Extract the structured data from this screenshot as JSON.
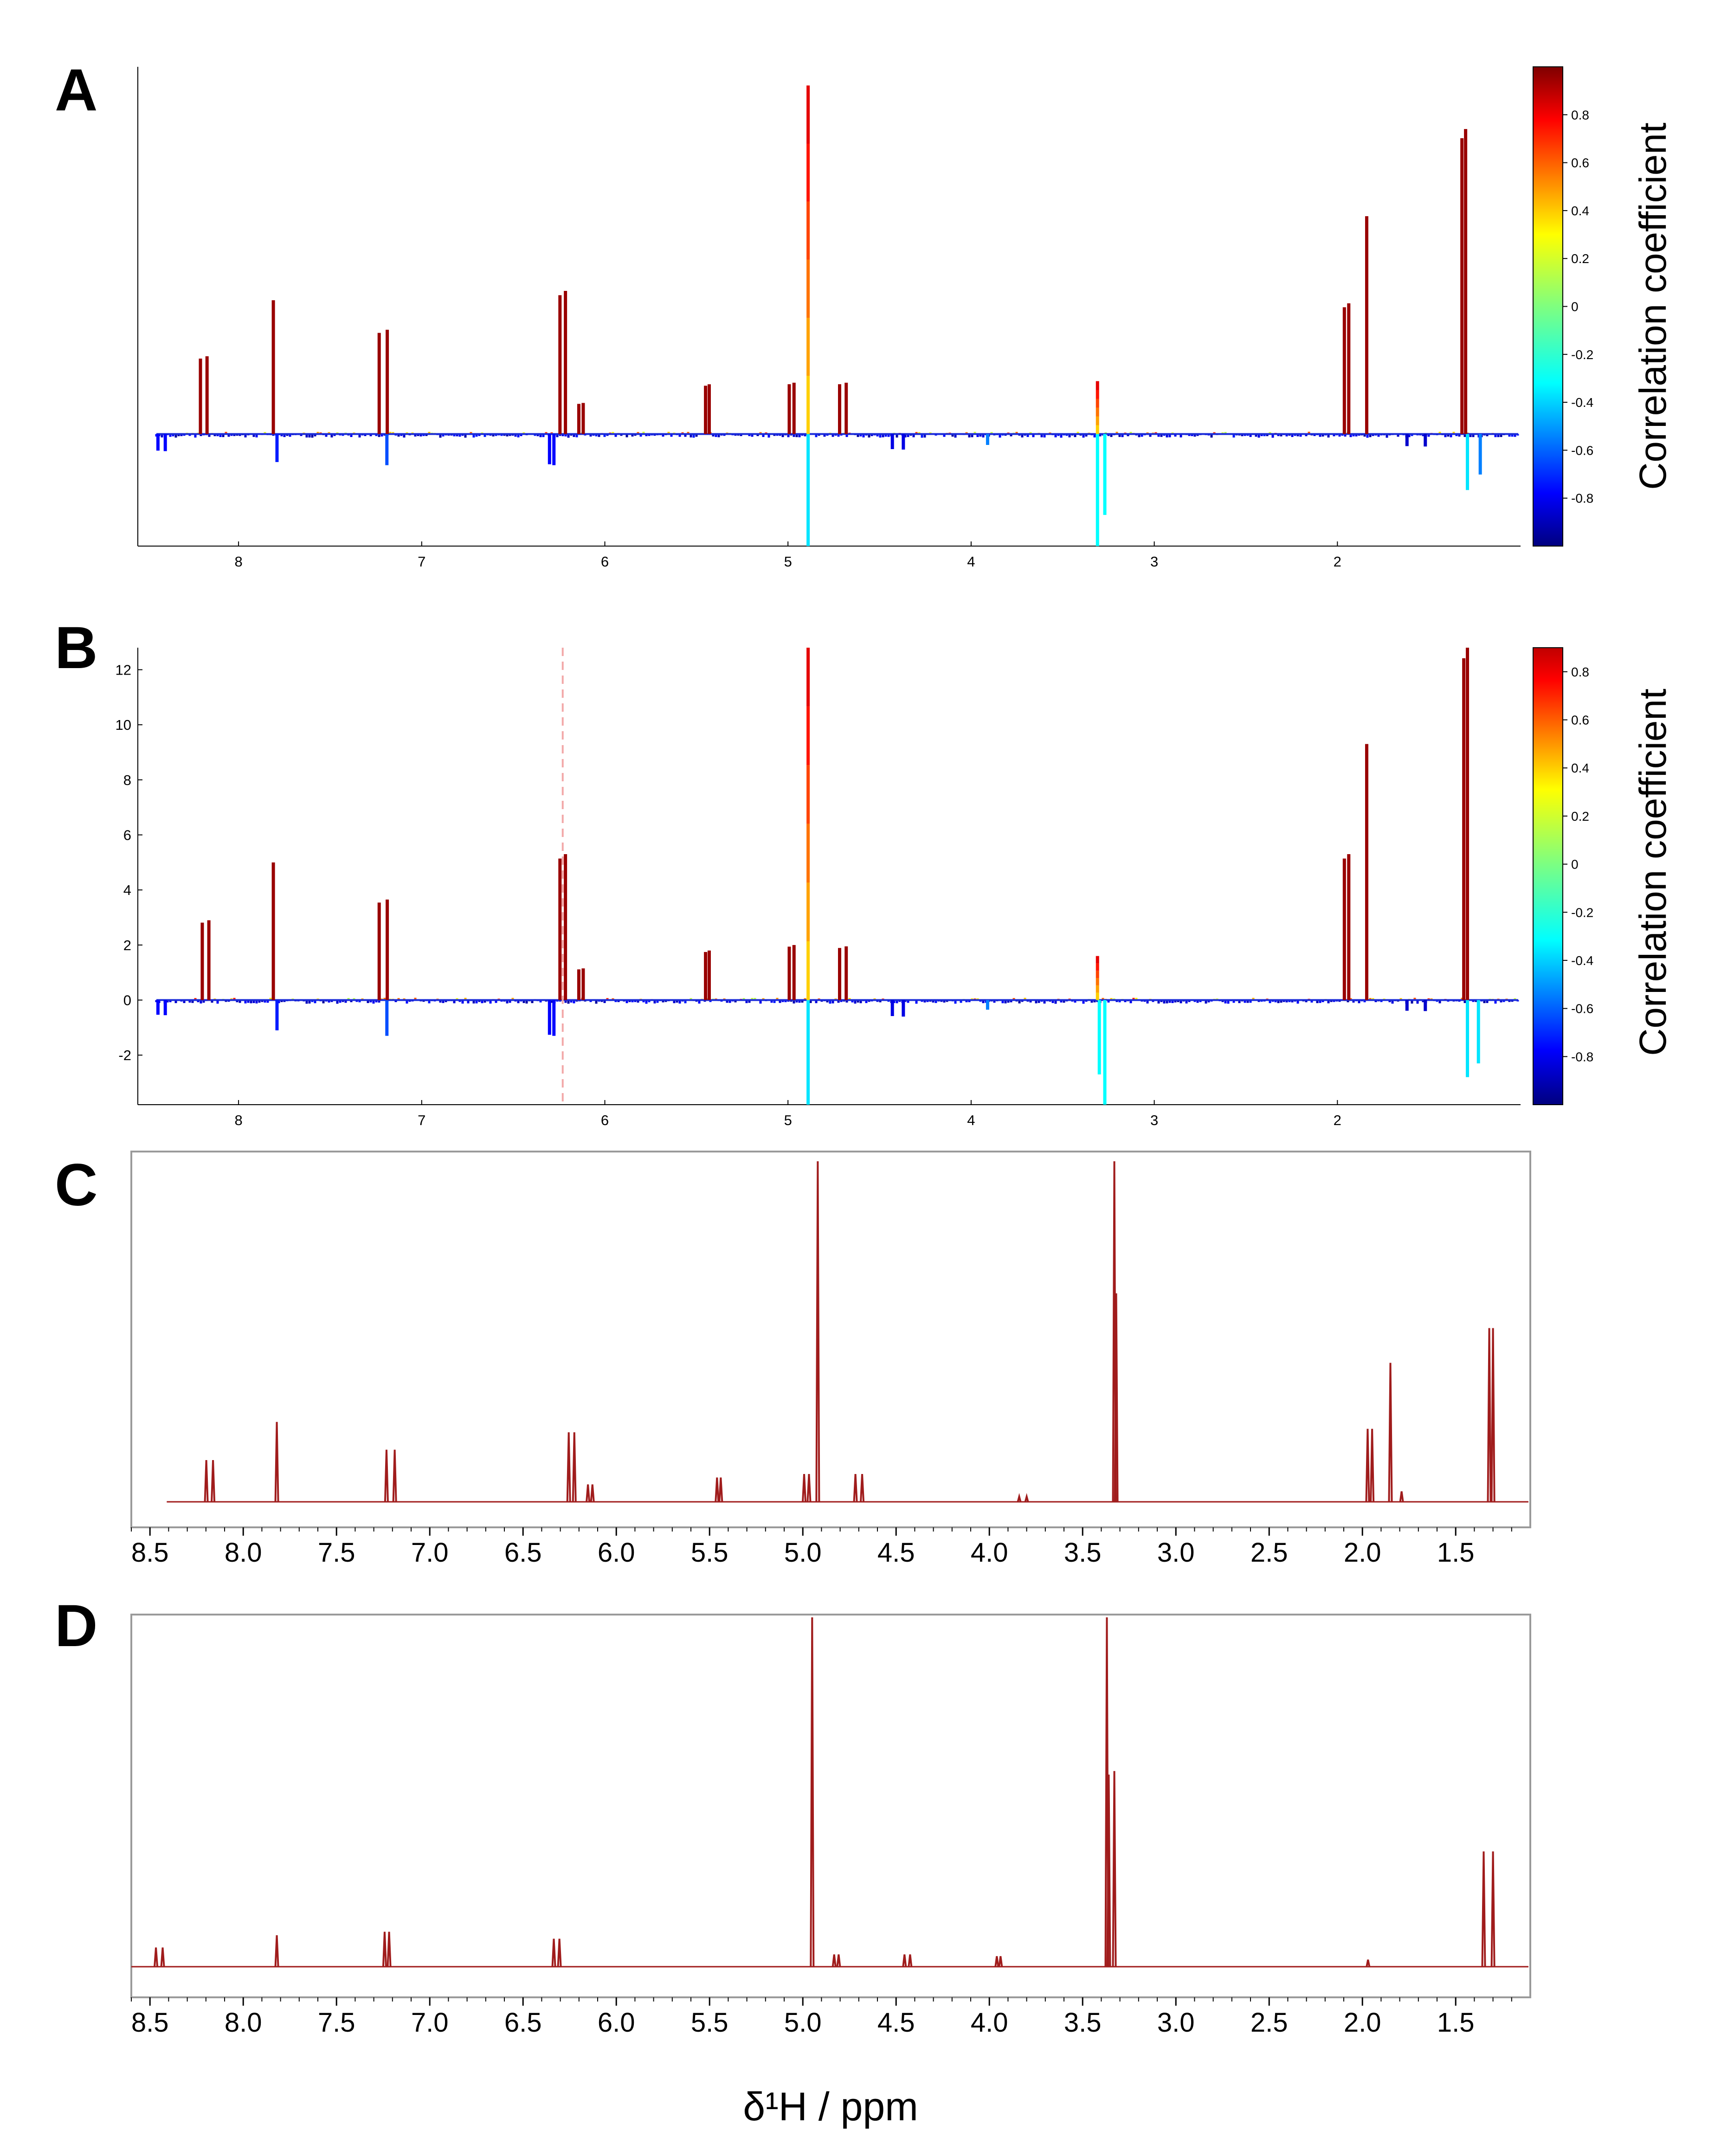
{
  "figure": {
    "xlabel": "δ¹H / ppm",
    "colorbar_label": "Correlation coefficient"
  },
  "colors": {
    "spectrum_line": "#a01c1c",
    "axis": "#000000",
    "frame_gray": "#9a9a9a",
    "dashed_marker": "#f2a8a8"
  },
  "chart_data": [
    {
      "id": "A",
      "letter": "A",
      "type": "line",
      "title": "",
      "xlabel": "",
      "ylabel": "",
      "x_axis": "reversed ppm",
      "xlim": [
        8.55,
        1.0
      ],
      "ylim": [
        -3.6,
        11.8
      ],
      "x_ticks": [
        8,
        7,
        6,
        5,
        4,
        3,
        2
      ],
      "x_tick_labels": [
        "8",
        "7",
        "6",
        "5",
        "4",
        "3",
        "2"
      ],
      "y_ticks": [],
      "y_tick_labels": [],
      "colored_by": "correlation coefficient",
      "colorbar": {
        "range": [
          -1,
          1
        ],
        "ticks": [
          0.8,
          0.6,
          0.4,
          0.2,
          0,
          -0.2,
          -0.4,
          -0.6,
          -0.8
        ],
        "tick_labels": [
          "0.8",
          "0.6",
          "0.4",
          "0.2",
          "0",
          "-0.2",
          "-0.4",
          "-0.6",
          "-0.8"
        ],
        "label": "Correlation coefficient"
      },
      "peaks": [
        {
          "ppm": 8.19,
          "height": 2.5,
          "r": 0.95,
          "split": 0.018
        },
        {
          "ppm": 7.81,
          "height": 4.3,
          "r": 0.95
        },
        {
          "ppm": 7.21,
          "height": 3.35,
          "r": 0.95,
          "split": 0.022
        },
        {
          "ppm": 6.23,
          "height": 4.6,
          "r": 0.95,
          "split": 0.015
        },
        {
          "ppm": 6.13,
          "height": 1.0,
          "r": 0.95,
          "split": 0.012
        },
        {
          "ppm": 5.44,
          "height": 1.6,
          "r": 0.95,
          "split": 0.01
        },
        {
          "ppm": 4.98,
          "height": 1.65,
          "r": 0.95,
          "split": 0.013
        },
        {
          "ppm": 4.89,
          "height": 11.2,
          "r": 0.5
        },
        {
          "ppm": 4.7,
          "height": 1.65,
          "r": 0.95,
          "split": 0.018
        },
        {
          "ppm": 3.31,
          "height": 1.7,
          "r": 0.45
        },
        {
          "ppm": 3.31,
          "height": -3.6,
          "r": -0.25
        },
        {
          "ppm": 3.27,
          "height": -2.6,
          "r": -0.25
        },
        {
          "ppm": 4.89,
          "height": -3.6,
          "r": -0.3
        },
        {
          "ppm": 1.95,
          "height": 4.2,
          "r": 0.95,
          "split": 0.012
        },
        {
          "ppm": 1.84,
          "height": 7.0,
          "r": 0.95
        },
        {
          "ppm": 1.31,
          "height": 9.8,
          "r": 0.95,
          "split": 0.01
        },
        {
          "ppm": 1.29,
          "height": -1.8,
          "r": -0.3
        },
        {
          "ppm": 1.22,
          "height": -1.3,
          "r": -0.5
        },
        {
          "ppm": 8.42,
          "height": -0.55,
          "r": -0.75,
          "split": 0.02
        },
        {
          "ppm": 7.79,
          "height": -0.9,
          "r": -0.7
        },
        {
          "ppm": 7.19,
          "height": -1.0,
          "r": -0.6
        },
        {
          "ppm": 6.29,
          "height": -1.0,
          "r": -0.75,
          "split": 0.012
        },
        {
          "ppm": 4.4,
          "height": -0.5,
          "r": -0.8,
          "split": 0.03
        },
        {
          "ppm": 3.91,
          "height": -0.35,
          "r": -0.5
        },
        {
          "ppm": 1.57,
          "height": -0.4,
          "r": -0.85,
          "split": 0.05
        }
      ]
    },
    {
      "id": "B",
      "letter": "B",
      "type": "line",
      "title": "",
      "xlabel": "",
      "ylabel": "",
      "x_axis": "reversed ppm",
      "xlim": [
        8.55,
        1.0
      ],
      "ylim": [
        -3.8,
        12.8
      ],
      "x_ticks": [
        8,
        7,
        6,
        5,
        4,
        3,
        2
      ],
      "x_tick_labels": [
        "8",
        "7",
        "6",
        "5",
        "4",
        "3",
        "2"
      ],
      "y_ticks": [
        12,
        10,
        8,
        6,
        4,
        2,
        0,
        -2
      ],
      "y_tick_labels": [
        "12",
        "10",
        "8",
        "6",
        "4",
        "2",
        "0",
        "-2"
      ],
      "reference_line_ppm": 6.23,
      "colored_by": "correlation coefficient",
      "colorbar": {
        "range": [
          -1,
          0.9
        ],
        "ticks": [
          0.8,
          0.6,
          0.4,
          0.2,
          0,
          -0.2,
          -0.4,
          -0.6,
          -0.8
        ],
        "tick_labels": [
          "0.8",
          "0.6",
          "0.4",
          "0.2",
          "0",
          "-0.2",
          "-0.4",
          "-0.6",
          "-0.8"
        ],
        "label": "Correlation coefficient"
      },
      "peaks": [
        {
          "ppm": 8.18,
          "height": 2.9,
          "r": 0.95,
          "split": 0.018
        },
        {
          "ppm": 7.81,
          "height": 5.0,
          "r": 0.95
        },
        {
          "ppm": 7.21,
          "height": 3.65,
          "r": 0.95,
          "split": 0.022
        },
        {
          "ppm": 6.23,
          "height": 5.3,
          "r": 0.95,
          "split": 0.015
        },
        {
          "ppm": 6.13,
          "height": 1.15,
          "r": 0.95,
          "split": 0.012
        },
        {
          "ppm": 5.44,
          "height": 1.8,
          "r": 0.95,
          "split": 0.01
        },
        {
          "ppm": 4.98,
          "height": 2.0,
          "r": 0.95,
          "split": 0.013
        },
        {
          "ppm": 4.89,
          "height": 12.8,
          "r": 0.5
        },
        {
          "ppm": 4.7,
          "height": 1.95,
          "r": 0.95,
          "split": 0.018
        },
        {
          "ppm": 3.31,
          "height": 1.6,
          "r": 0.45
        },
        {
          "ppm": 3.3,
          "height": -2.7,
          "r": -0.25
        },
        {
          "ppm": 3.27,
          "height": -3.8,
          "r": -0.25
        },
        {
          "ppm": 4.89,
          "height": -3.8,
          "r": -0.3
        },
        {
          "ppm": 1.95,
          "height": 5.3,
          "r": 0.95,
          "split": 0.012
        },
        {
          "ppm": 1.84,
          "height": 9.3,
          "r": 0.95
        },
        {
          "ppm": 1.3,
          "height": 12.8,
          "r": 0.95,
          "split": 0.01
        },
        {
          "ppm": 1.29,
          "height": -2.8,
          "r": -0.3
        },
        {
          "ppm": 1.23,
          "height": -2.3,
          "r": -0.3
        },
        {
          "ppm": 8.42,
          "height": -0.55,
          "r": -0.75,
          "split": 0.02
        },
        {
          "ppm": 7.79,
          "height": -1.1,
          "r": -0.7
        },
        {
          "ppm": 7.19,
          "height": -1.3,
          "r": -0.6
        },
        {
          "ppm": 6.29,
          "height": -1.3,
          "r": -0.75,
          "split": 0.012
        },
        {
          "ppm": 4.4,
          "height": -0.6,
          "r": -0.8,
          "split": 0.03
        },
        {
          "ppm": 3.91,
          "height": -0.35,
          "r": -0.5
        },
        {
          "ppm": 1.57,
          "height": -0.4,
          "r": -0.85,
          "split": 0.05
        }
      ]
    },
    {
      "id": "C",
      "letter": "C",
      "type": "line",
      "title": "",
      "xlabel": "",
      "ylabel": "",
      "x_axis": "reversed ppm",
      "xlim": [
        8.6,
        1.1
      ],
      "ylim": [
        -0.06,
        1.0
      ],
      "x_ticks": [
        8.5,
        8.0,
        7.5,
        7.0,
        6.5,
        6.0,
        5.5,
        5.0,
        4.5,
        4.0,
        3.5,
        3.0,
        2.5,
        2.0,
        1.5
      ],
      "x_tick_labels": [
        "8.5",
        "8.0",
        "7.5",
        "7.0",
        "6.5",
        "6.0",
        "5.5",
        "5.0",
        "4.5",
        "4.0",
        "3.5",
        "3.0",
        "2.5",
        "2.0",
        "1.5"
      ],
      "color": "#a01c1c",
      "baseline_ppm_range": [
        8.41,
        1.1
      ],
      "peaks": [
        {
          "ppm": 8.18,
          "height": 0.12,
          "split": 0.018
        },
        {
          "ppm": 7.82,
          "height": 0.23
        },
        {
          "ppm": 7.21,
          "height": 0.15,
          "split": 0.022
        },
        {
          "ppm": 6.24,
          "height": 0.2,
          "split": 0.015
        },
        {
          "ppm": 6.14,
          "height": 0.05,
          "split": 0.012
        },
        {
          "ppm": 5.45,
          "height": 0.07,
          "split": 0.01
        },
        {
          "ppm": 4.98,
          "height": 0.08,
          "split": 0.013
        },
        {
          "ppm": 4.92,
          "height": 0.98
        },
        {
          "ppm": 4.7,
          "height": 0.08,
          "split": 0.018
        },
        {
          "ppm": 3.82,
          "height": 0.015,
          "split": 0.02
        },
        {
          "ppm": 3.33,
          "height": 0.98
        },
        {
          "ppm": 3.32,
          "height": 0.6
        },
        {
          "ppm": 1.96,
          "height": 0.21,
          "split": 0.012
        },
        {
          "ppm": 1.85,
          "height": 0.4
        },
        {
          "ppm": 1.79,
          "height": 0.03
        },
        {
          "ppm": 1.31,
          "height": 0.5,
          "split": 0.01
        }
      ]
    },
    {
      "id": "D",
      "letter": "D",
      "type": "line",
      "title": "",
      "xlabel": "δ¹H / ppm",
      "ylabel": "",
      "x_axis": "reversed ppm",
      "xlim": [
        8.6,
        1.1
      ],
      "ylim": [
        -0.03,
        1.0
      ],
      "x_ticks": [
        8.5,
        8.0,
        7.5,
        7.0,
        6.5,
        6.0,
        5.5,
        5.0,
        4.5,
        4.0,
        3.5,
        3.0,
        2.5,
        2.0,
        1.5
      ],
      "x_tick_labels": [
        "8.5",
        "8.0",
        "7.5",
        "7.0",
        "6.5",
        "6.0",
        "5.5",
        "5.0",
        "4.5",
        "4.0",
        "3.5",
        "3.0",
        "2.5",
        "2.0",
        "1.5"
      ],
      "color": "#a01c1c",
      "baseline_ppm_range": [
        8.6,
        1.1
      ],
      "peaks": [
        {
          "ppm": 8.45,
          "height": 0.055,
          "split": 0.018
        },
        {
          "ppm": 7.82,
          "height": 0.09
        },
        {
          "ppm": 7.23,
          "height": 0.1,
          "split": 0.012
        },
        {
          "ppm": 6.32,
          "height": 0.08,
          "split": 0.015
        },
        {
          "ppm": 4.95,
          "height": 1.0
        },
        {
          "ppm": 4.82,
          "height": 0.035,
          "split": 0.012
        },
        {
          "ppm": 4.44,
          "height": 0.035,
          "split": 0.015
        },
        {
          "ppm": 3.95,
          "height": 0.03,
          "split": 0.01
        },
        {
          "ppm": 3.37,
          "height": 1.0
        },
        {
          "ppm": 3.36,
          "height": 0.55
        },
        {
          "ppm": 3.33,
          "height": 0.56
        },
        {
          "ppm": 1.97,
          "height": 0.02
        },
        {
          "ppm": 1.35,
          "height": 0.33
        },
        {
          "ppm": 1.3,
          "height": 0.33
        }
      ]
    }
  ]
}
